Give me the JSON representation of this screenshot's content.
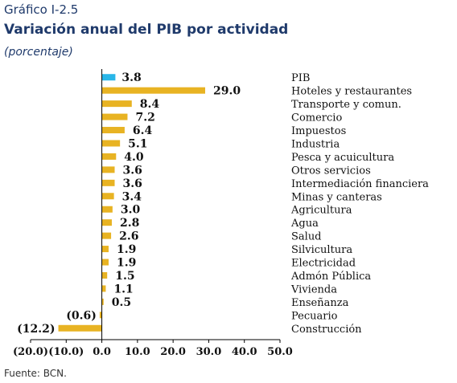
{
  "header": {
    "number": "Gráfico I-2.5",
    "title": "Variación anual del PIB por actividad",
    "subtitle": "(porcentaje)"
  },
  "chart_data": {
    "type": "bar",
    "orientation": "horizontal",
    "categories": [
      "PIB",
      "Hoteles y restaurantes",
      "Transporte y comun.",
      "Comercio",
      "Impuestos",
      "Industria",
      "Pesca y acuicultura",
      "Otros servicios",
      "Intermediación financiera",
      "Minas y canteras",
      "Agricultura",
      "Agua",
      "Salud",
      "Silvicultura",
      "Electricidad",
      "Admón Pública",
      "Vivienda",
      "Enseñanza",
      "Pecuario",
      "Construcción"
    ],
    "values": [
      3.8,
      29.0,
      8.4,
      7.2,
      6.4,
      5.1,
      4.0,
      3.6,
      3.6,
      3.4,
      3.0,
      2.8,
      2.6,
      1.9,
      1.9,
      1.5,
      1.1,
      0.5,
      -0.6,
      -12.2
    ],
    "value_labels": [
      "3.8",
      "29.0",
      "8.4",
      "7.2",
      "6.4",
      "5.1",
      "4.0",
      "3.6",
      "3.6",
      "3.4",
      "3.0",
      "2.8",
      "2.6",
      "1.9",
      "1.9",
      "1.5",
      "1.1",
      "0.5",
      "(0.6)",
      "(12.2)"
    ],
    "xlim": [
      -20,
      50
    ],
    "xticks": [
      -20,
      -10,
      0,
      10,
      20,
      30,
      40,
      50
    ],
    "xtick_labels": [
      "(20.0)",
      "(10.0)",
      "0.0",
      "10.0",
      "20.0",
      "30.0",
      "40.0",
      "50.0"
    ],
    "colors": {
      "highlight": "#29b6e8",
      "bar": "#e8b323",
      "axis": "#000000"
    },
    "highlight_index": 0,
    "grid": false,
    "legend": "none"
  },
  "source": "Fuente: BCN."
}
